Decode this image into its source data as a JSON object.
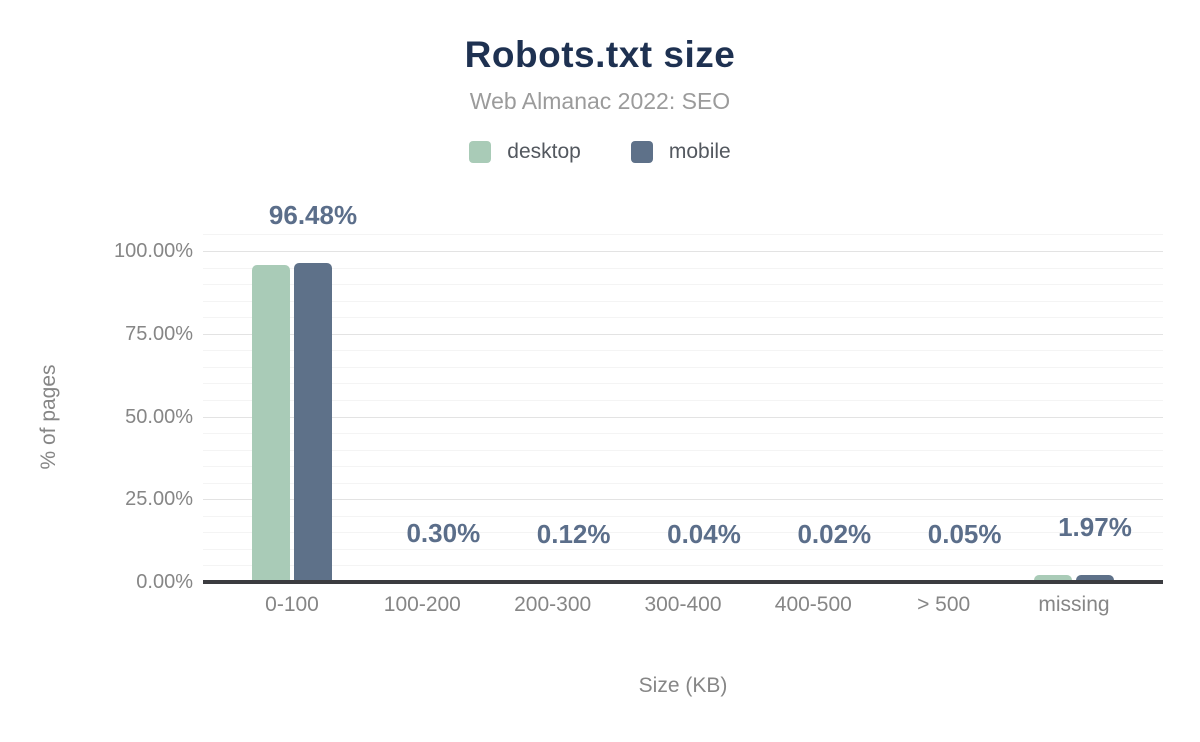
{
  "chart_data": {
    "type": "bar",
    "title": "Robots.txt size",
    "subtitle": "Web Almanac 2022: SEO",
    "xlabel": "Size (KB)",
    "ylabel": "% of pages",
    "categories": [
      "0-100",
      "100-200",
      "200-300",
      "300-400",
      "400-500",
      "> 500",
      "missing"
    ],
    "series": [
      {
        "name": "desktop",
        "color": "#a9cbb7",
        "values": [
          95.7,
          0.28,
          0.11,
          0.04,
          0.02,
          0.05,
          2.0
        ]
      },
      {
        "name": "mobile",
        "color": "#5e7189",
        "values": [
          96.48,
          0.3,
          0.12,
          0.04,
          0.02,
          0.05,
          1.97
        ]
      }
    ],
    "bar_labels": [
      "96.48%",
      "0.30%",
      "0.12%",
      "0.04%",
      "0.02%",
      "0.05%",
      "1.97%"
    ],
    "bar_label_series": "mobile",
    "y_ticks": [
      {
        "value": 0,
        "label": "0.00%"
      },
      {
        "value": 25,
        "label": "25.00%"
      },
      {
        "value": 50,
        "label": "50.00%"
      },
      {
        "value": 75,
        "label": "75.00%"
      },
      {
        "value": 100,
        "label": "100.00%"
      }
    ],
    "ylim": [
      0,
      105
    ],
    "grid": {
      "orientation": "horizontal",
      "minor_step_pct": 5,
      "major_step_pct": 25
    },
    "legend_position": "top-center",
    "colors": {
      "title": "#1e3151",
      "subtitle": "#9b9b9b",
      "legend_text": "#53585f",
      "axis_text": "#868686",
      "data_label": "#5b6e8a",
      "axis_line": "#3b3c40",
      "major_grid": "#e3e3e3",
      "minor_grid": "#f4f4f4"
    }
  }
}
